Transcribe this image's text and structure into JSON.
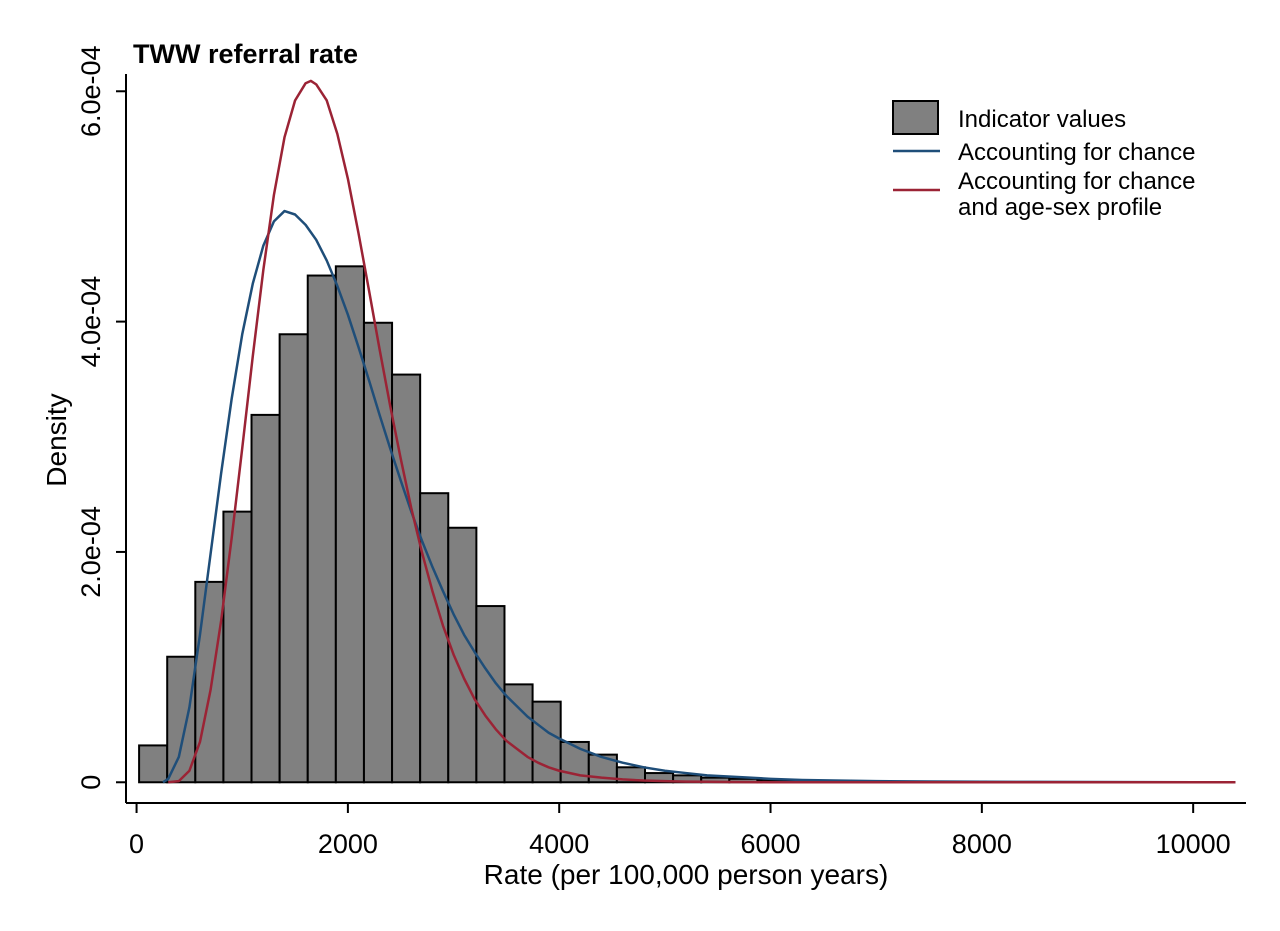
{
  "chart_data": {
    "type": "bar",
    "title": "TWW referral rate",
    "xlabel": "Rate (per 100,000 person years)",
    "ylabel": "Density",
    "xlim": [
      -100,
      10500
    ],
    "ylim": [
      -1.8e-05,
      0.000615
    ],
    "xticks": [
      0,
      2000,
      4000,
      6000,
      8000,
      10000
    ],
    "xtick_labels": [
      "0",
      "2000",
      "4000",
      "6000",
      "8000",
      "10000"
    ],
    "yticks": [
      0,
      0.0002,
      0.0004,
      0.0006
    ],
    "ytick_labels": [
      "0",
      "2.0e-04",
      "4.0e-04",
      "6.0e-04"
    ],
    "grid": false,
    "legend_position": "top-right",
    "bar_color": "#808080",
    "histogram": {
      "name": "Indicator values",
      "bin_width": 266,
      "bin_starts": [
        24,
        290,
        556,
        822,
        1088,
        1354,
        1620,
        1886,
        2152,
        2418,
        2684,
        2950,
        3216,
        3482,
        3748,
        4014,
        4280,
        4546,
        4812,
        5078,
        5344,
        5610,
        5876,
        6142
      ],
      "values": [
        3.2e-05,
        0.000109,
        0.000174,
        0.000235,
        0.000319,
        0.000389,
        0.00044,
        0.000448,
        0.000399,
        0.000354,
        0.000251,
        0.000221,
        0.000153,
        8.5e-05,
        7e-05,
        3.5e-05,
        2.4e-05,
        1.3e-05,
        8e-06,
        6e-06,
        4e-06,
        3e-06,
        2e-06,
        1e-06
      ]
    },
    "series": [
      {
        "name": "Accounting for chance",
        "color": "#1f4e79",
        "x": [
          250,
          300,
          400,
          500,
          600,
          700,
          800,
          900,
          1000,
          1100,
          1200,
          1300,
          1400,
          1500,
          1600,
          1700,
          1800,
          1900,
          2000,
          2100,
          2200,
          2300,
          2400,
          2500,
          2600,
          2700,
          2800,
          2900,
          3000,
          3100,
          3200,
          3300,
          3400,
          3500,
          3600,
          3700,
          3800,
          3900,
          4000,
          4200,
          4400,
          4600,
          4800,
          5000,
          5200,
          5400,
          5600,
          5800,
          6000,
          6300,
          6600,
          7000,
          7500,
          8000,
          8500,
          9000,
          9500,
          10000,
          10400
        ],
        "values": [
          0,
          3e-06,
          2.2e-05,
          6.5e-05,
          0.000128,
          0.000198,
          0.000268,
          0.000333,
          0.000389,
          0.000433,
          0.000466,
          0.000487,
          0.000496,
          0.000493,
          0.000484,
          0.000471,
          0.000453,
          0.000431,
          0.000406,
          0.000378,
          0.000349,
          0.000319,
          0.00029,
          0.000262,
          0.000235,
          0.00021,
          0.000187,
          0.000166,
          0.000146,
          0.000128,
          0.000113,
          9.9e-05,
          8.6e-05,
          7.5e-05,
          6.6e-05,
          5.7e-05,
          5e-05,
          4.3e-05,
          3.8e-05,
          2.9e-05,
          2.2e-05,
          1.7e-05,
          1.3e-05,
          1e-05,
          8e-06,
          6e-06,
          5e-06,
          4e-06,
          3e-06,
          2e-06,
          1.5e-06,
          1e-06,
          7e-07,
          5e-07,
          3e-07,
          2e-07,
          1e-07,
          5e-08,
          0
        ]
      },
      {
        "name": "Accounting for chance and age-sex profile",
        "legend_lines": [
          "Accounting for chance",
          "and age-sex profile"
        ],
        "color": "#9b2335",
        "x": [
          300,
          400,
          500,
          600,
          700,
          800,
          900,
          1000,
          1100,
          1200,
          1300,
          1400,
          1500,
          1600,
          1650,
          1700,
          1800,
          1900,
          2000,
          2100,
          2200,
          2300,
          2400,
          2500,
          2600,
          2700,
          2800,
          2900,
          3000,
          3100,
          3200,
          3300,
          3400,
          3500,
          3600,
          3700,
          3800,
          3900,
          4000,
          4200,
          4400,
          4600,
          4800,
          5000,
          5200,
          5400,
          5600,
          5800,
          6000,
          6500,
          7000,
          8000,
          9000,
          10000,
          10400
        ],
        "values": [
          0,
          1e-06,
          1e-05,
          3.5e-05,
          8e-05,
          0.00014,
          0.000212,
          0.00029,
          0.00037,
          0.000445,
          0.00051,
          0.00056,
          0.000592,
          0.000607,
          0.000609,
          0.000606,
          0.000592,
          0.000563,
          0.000524,
          0.000477,
          0.000427,
          0.000376,
          0.000327,
          0.000281,
          0.000238,
          0.0002,
          0.000166,
          0.000136,
          0.000111,
          9e-05,
          7.2e-05,
          5.8e-05,
          4.6e-05,
          3.6e-05,
          2.9e-05,
          2.2e-05,
          1.7e-05,
          1.3e-05,
          1e-05,
          6e-06,
          4e-06,
          2.5e-06,
          1.5e-06,
          1e-06,
          6e-07,
          4e-07,
          2e-07,
          1e-07,
          5e-08,
          2e-08,
          0,
          0,
          0,
          0,
          0
        ]
      }
    ]
  }
}
